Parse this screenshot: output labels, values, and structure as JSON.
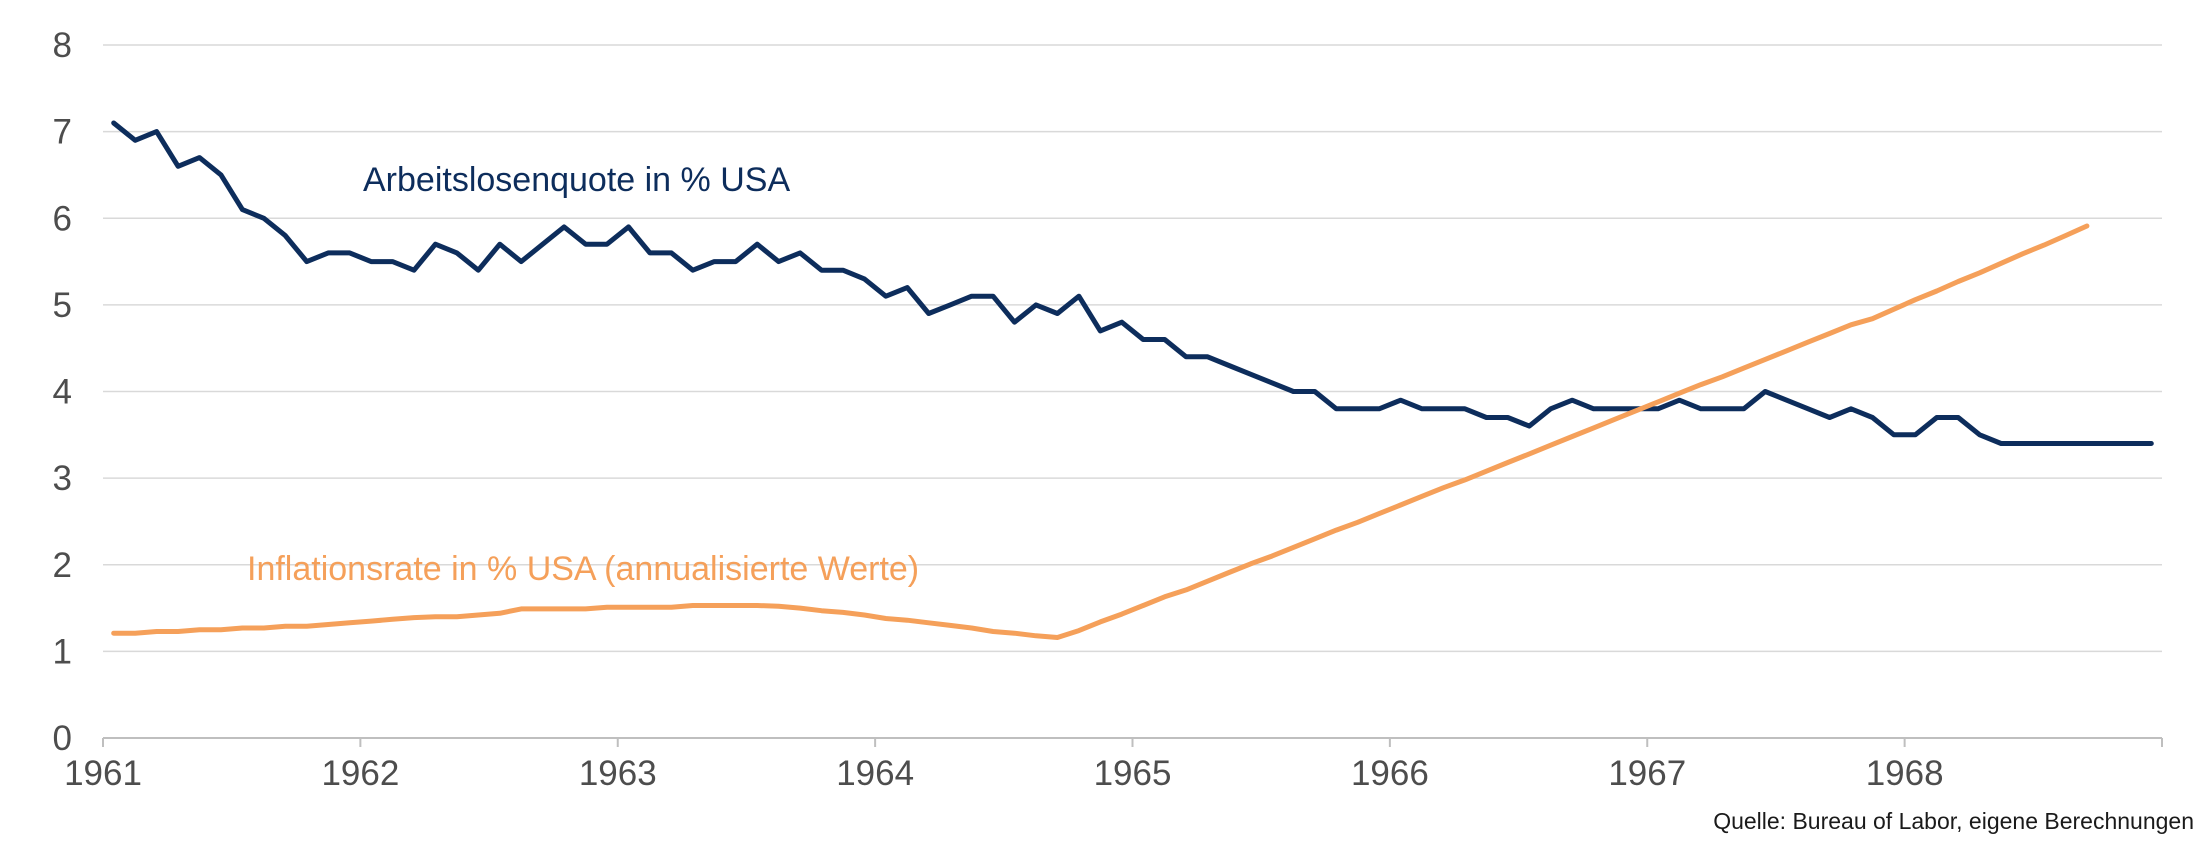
{
  "source_note": "Quelle: Bureau of Labor, eigene Berechnungen",
  "chart_data": {
    "type": "line",
    "title": "",
    "xlabel": "",
    "ylabel": "",
    "ylim": [
      0,
      8
    ],
    "yticks": [
      "0",
      "1",
      "2",
      "3",
      "4",
      "5",
      "6",
      "7",
      "8"
    ],
    "xlim": [
      1961.0,
      1969.0
    ],
    "xticks": [
      "1961",
      "1962",
      "1963",
      "1964",
      "1965",
      "1966",
      "1967",
      "1968"
    ],
    "grid": true,
    "series": [
      {
        "name": "Arbeitslosenquote in % USA",
        "color": "#0d2d5c",
        "start_year": 1961,
        "frequency": "monthly",
        "values": [
          7.1,
          6.9,
          7.0,
          6.6,
          6.7,
          6.5,
          6.1,
          6.0,
          5.8,
          5.5,
          5.6,
          5.6,
          5.5,
          5.5,
          5.4,
          5.7,
          5.6,
          5.4,
          5.7,
          5.5,
          5.7,
          5.9,
          5.7,
          5.7,
          5.9,
          5.6,
          5.6,
          5.4,
          5.5,
          5.5,
          5.7,
          5.5,
          5.6,
          5.4,
          5.4,
          5.3,
          5.1,
          5.2,
          4.9,
          5.0,
          5.1,
          5.1,
          4.8,
          5.0,
          4.9,
          5.1,
          4.7,
          4.8,
          4.6,
          4.6,
          4.4,
          4.4,
          4.3,
          4.2,
          4.1,
          4.0,
          4.0,
          3.8,
          3.8,
          3.8,
          3.9,
          3.8,
          3.8,
          3.8,
          3.7,
          3.7,
          3.6,
          3.8,
          3.9,
          3.8,
          3.8,
          3.8,
          3.8,
          3.9,
          3.8,
          3.8,
          3.8,
          4.0,
          3.9,
          3.8,
          3.7,
          3.8,
          3.7,
          3.5,
          3.5,
          3.7,
          3.7,
          3.5,
          3.4,
          3.4,
          3.4,
          3.4,
          3.4,
          3.4,
          3.4,
          3.4
        ]
      },
      {
        "name": "Inflationsrate in % USA (annualisierte Werte)",
        "color": "#f5a05a",
        "start_year": 1961,
        "frequency": "monthly",
        "values": [
          1.21,
          1.21,
          1.23,
          1.23,
          1.25,
          1.25,
          1.27,
          1.27,
          1.29,
          1.29,
          1.31,
          1.33,
          1.35,
          1.37,
          1.39,
          1.4,
          1.4,
          1.42,
          1.44,
          1.49,
          1.49,
          1.49,
          1.49,
          1.51,
          1.51,
          1.51,
          1.51,
          1.53,
          1.53,
          1.53,
          1.53,
          1.52,
          1.5,
          1.47,
          1.45,
          1.42,
          1.38,
          1.36,
          1.33,
          1.3,
          1.27,
          1.23,
          1.21,
          1.18,
          1.16,
          1.24,
          1.34,
          1.43,
          1.53,
          1.63,
          1.71,
          1.81,
          1.91,
          2.01,
          2.1,
          2.2,
          2.3,
          2.4,
          2.49,
          2.59,
          2.69,
          2.79,
          2.89,
          2.98,
          3.08,
          3.18,
          3.28,
          3.38,
          3.48,
          3.58,
          3.68,
          3.78,
          3.88,
          3.98,
          4.08,
          4.17,
          4.27,
          4.37,
          4.47,
          4.57,
          4.67,
          4.77,
          4.84,
          4.95,
          5.06,
          5.16,
          5.27,
          5.37,
          5.48,
          5.59,
          5.69,
          5.8,
          5.91
        ]
      }
    ]
  }
}
